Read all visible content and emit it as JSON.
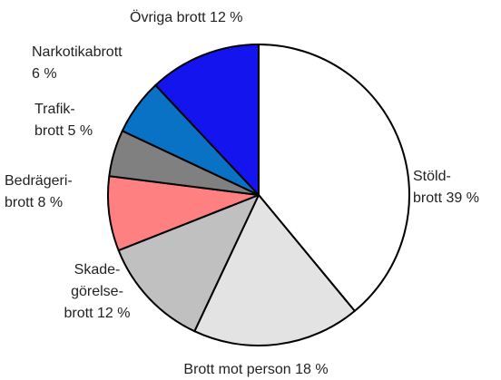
{
  "chart_data": {
    "type": "pie",
    "categories": [
      [
        "Stöld-",
        "brott"
      ],
      [
        "Brott mot person"
      ],
      [
        "Skade-",
        "görelse-",
        "brott"
      ],
      [
        "Bedrägeri-",
        "brott"
      ],
      [
        "Trafik-",
        "brott"
      ],
      [
        "Narkotikabrott"
      ],
      [
        "Övriga brott"
      ]
    ],
    "values": [
      39,
      18,
      12,
      8,
      5,
      6,
      12
    ],
    "value_labels": [
      "39 %",
      "18 %",
      "12 %",
      "8 %",
      "5 %",
      "6 %",
      "12 %"
    ],
    "colors": [
      "#ffffff",
      "#e3e3e3",
      "#c0c0c0",
      "#ff8080",
      "#808080",
      "#0a72c4",
      "#1414ee"
    ]
  }
}
